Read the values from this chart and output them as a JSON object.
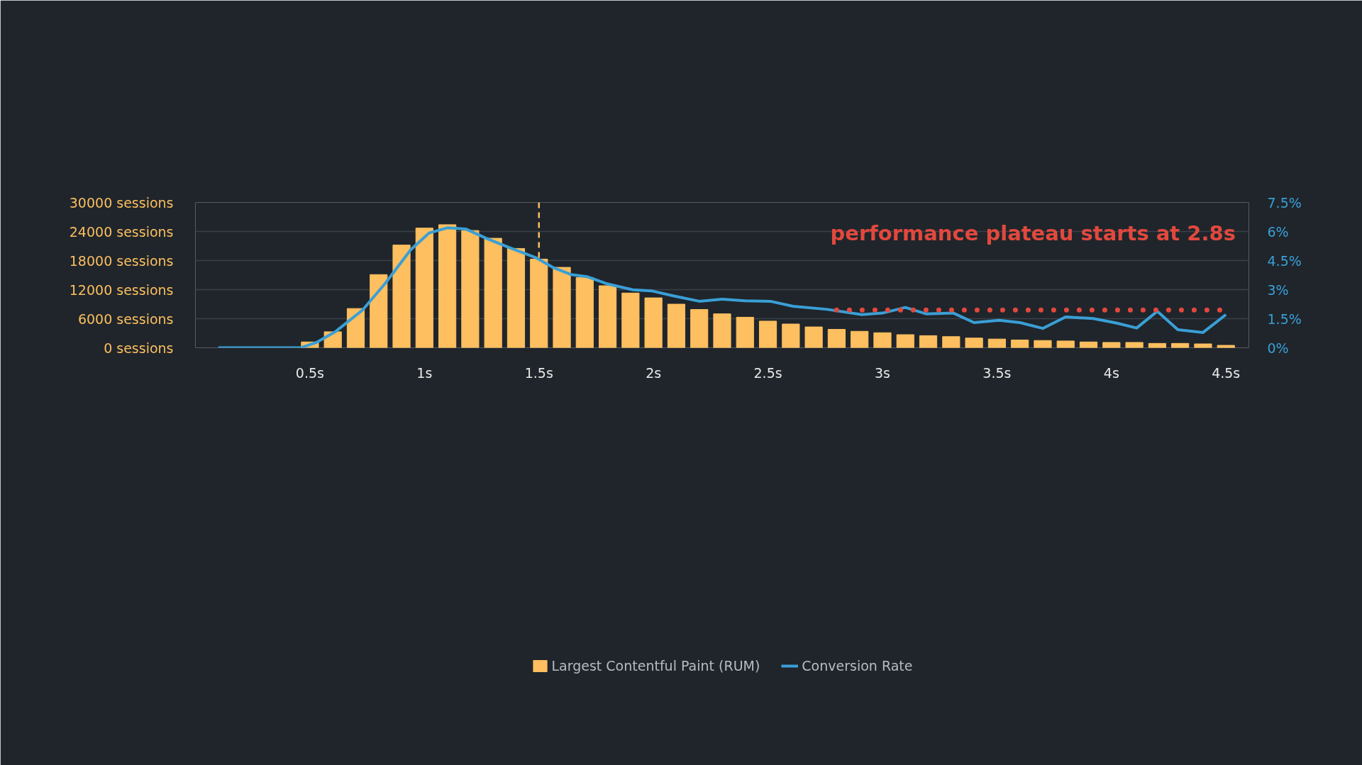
{
  "chart_data": {
    "type": "bar",
    "x": [
      0.5,
      0.6,
      0.7,
      0.8,
      0.9,
      1.0,
      1.1,
      1.2,
      1.3,
      1.4,
      1.5,
      1.6,
      1.7,
      1.8,
      1.9,
      2.0,
      2.1,
      2.2,
      2.3,
      2.4,
      2.5,
      2.6,
      2.7,
      2.8,
      2.9,
      3.0,
      3.1,
      3.2,
      3.3,
      3.4,
      3.5,
      3.6,
      3.7,
      3.8,
      3.9,
      4.0,
      4.1,
      4.2,
      4.3,
      4.4,
      4.5
    ],
    "series": [
      {
        "name": "Largest Contentful Paint (RUM)",
        "color": "#fdbf5f",
        "values": [
          1200,
          3300,
          8100,
          15100,
          21200,
          24700,
          25400,
          24200,
          22600,
          20500,
          18300,
          16600,
          14500,
          12800,
          11300,
          10300,
          9000,
          7900,
          7000,
          6300,
          5500,
          4900,
          4300,
          3800,
          3400,
          3100,
          2700,
          2500,
          2300,
          2000,
          1800,
          1600,
          1500,
          1400,
          1200,
          1100,
          1100,
          900,
          900,
          800,
          500
        ]
      },
      {
        "name": "Conversion Rate",
        "type": "line",
        "axis": "y2",
        "color": "#3a9fd6",
        "x": [
          0.1,
          0.46,
          0.53,
          0.61,
          0.73,
          0.83,
          0.94,
          1.02,
          1.1,
          1.18,
          1.27,
          1.37,
          1.49,
          1.56,
          1.64,
          1.71,
          1.8,
          1.91,
          1.99,
          2.09,
          2.2,
          2.3,
          2.4,
          2.51,
          2.61,
          2.76,
          2.91,
          3.0,
          3.1,
          3.19,
          3.31,
          3.4,
          3.51,
          3.6,
          3.7,
          3.8,
          3.92,
          4.02,
          4.11,
          4.2,
          4.29,
          4.4,
          4.5
        ],
        "values": [
          0,
          0,
          0.28,
          0.82,
          1.95,
          3.34,
          5.06,
          5.92,
          6.19,
          6.13,
          5.65,
          5.17,
          4.63,
          4.15,
          3.78,
          3.67,
          3.29,
          2.99,
          2.94,
          2.67,
          2.4,
          2.51,
          2.42,
          2.4,
          2.14,
          1.98,
          1.71,
          1.79,
          2.08,
          1.75,
          1.79,
          1.3,
          1.42,
          1.3,
          1.0,
          1.59,
          1.51,
          1.28,
          1.02,
          1.88,
          0.93,
          0.79,
          1.71
        ]
      },
      {
        "type": "line",
        "axis": "y2",
        "color": "#e2483d",
        "line_style": "dotted",
        "x": [
          2.8,
          4.5
        ],
        "values": [
          1.95,
          1.95
        ]
      }
    ],
    "xlim": [
      0,
      4.6
    ],
    "xticks": [
      {
        "value": 0.5,
        "label": "0.5s"
      },
      {
        "value": 1,
        "label": "1s"
      },
      {
        "value": 1.5,
        "label": "1.5s"
      },
      {
        "value": 2,
        "label": "2s"
      },
      {
        "value": 2.5,
        "label": "2.5s"
      },
      {
        "value": 3,
        "label": "3s"
      },
      {
        "value": 3.5,
        "label": "3.5s"
      },
      {
        "value": 4,
        "label": "4s"
      },
      {
        "value": 4.5,
        "label": "4.5s"
      }
    ],
    "ylim": [
      0,
      30000
    ],
    "yticks": [
      {
        "value": 0,
        "label": "0 sessions"
      },
      {
        "value": 6000,
        "label": "6000 sessions"
      },
      {
        "value": 12000,
        "label": "12000 sessions"
      },
      {
        "value": 18000,
        "label": "18000 sessions"
      },
      {
        "value": 24000,
        "label": "24000 sessions"
      },
      {
        "value": 30000,
        "label": "30000 sessions"
      }
    ],
    "y2lim": [
      0,
      7.5
    ],
    "y2ticks": [
      {
        "value": 0,
        "label": "0%"
      },
      {
        "value": 1.5,
        "label": "1.5%"
      },
      {
        "value": 3,
        "label": "3%"
      },
      {
        "value": 4.5,
        "label": "4.5%"
      },
      {
        "value": 6,
        "label": "6%"
      },
      {
        "value": 7.5,
        "label": "7.5%"
      }
    ],
    "ref_lines": [
      {
        "axis": "x",
        "value": 1.5,
        "color": "#fdbf5f",
        "line_style": "dashed"
      }
    ],
    "annotations": [
      "performance plateau starts at 2.8s"
    ],
    "grid": "y",
    "legend": "bottom"
  }
}
